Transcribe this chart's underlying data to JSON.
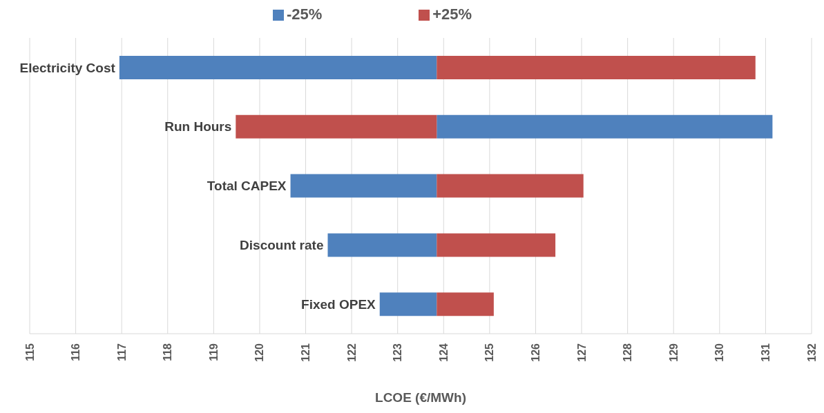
{
  "chart_data": {
    "type": "bar",
    "orientation": "horizontal",
    "xlabel": "LCOE (€/MWh)",
    "categories": [
      "Electricity Cost",
      "Run Hours",
      "Total CAPEX",
      "Discount rate",
      "Fixed OPEX"
    ],
    "series": [
      {
        "name": "-25%",
        "color": "#4f81bd",
        "base": [
          116.95,
          123.85,
          120.67,
          121.48,
          122.61
        ],
        "values": [
          6.9,
          7.3,
          3.18,
          2.37,
          1.24
        ]
      },
      {
        "name": "+25%",
        "color": "#c0504d",
        "base": [
          123.85,
          119.48,
          123.85,
          123.85,
          123.85
        ],
        "values": [
          6.93,
          4.37,
          3.19,
          2.58,
          1.24
        ]
      }
    ],
    "xlim": [
      115,
      132
    ],
    "xticks": [
      115,
      116,
      117,
      118,
      119,
      120,
      121,
      122,
      123,
      124,
      125,
      126,
      127,
      128,
      129,
      130,
      131,
      132
    ],
    "grid": "x",
    "legend": "top"
  }
}
